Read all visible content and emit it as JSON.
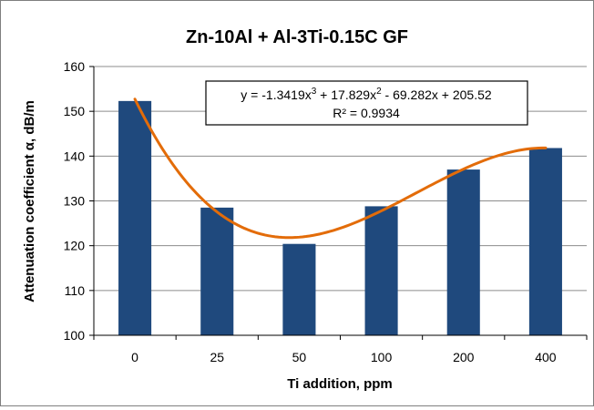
{
  "chart_data": {
    "type": "bar",
    "title": "Zn-10Al + Al-3Ti-0.15C GF",
    "xlabel": "Ti addition, ppm",
    "ylabel": "Attenuation coefficient  α, dB/m",
    "categories": [
      "0",
      "25",
      "50",
      "100",
      "200",
      "400"
    ],
    "series": [
      {
        "name": "",
        "values": [
          152.3,
          128.5,
          120.4,
          128.8,
          137.0,
          141.8
        ],
        "color": "#1f497d"
      }
    ],
    "trendline": {
      "type": "polynomial",
      "order": 3,
      "coefficients": [
        -1.3419,
        17.829,
        -69.282,
        205.52
      ],
      "equation_prefix": "y = -1.3419x",
      "equation_sup1": "3",
      "equation_mid": " + 17.829x",
      "equation_sup2": "2",
      "equation_suffix": " - 69.282x + 205.52",
      "r_squared_text": "R² = 0.9934",
      "color": "#e36c09"
    },
    "ylim": [
      100,
      160
    ],
    "yticks": [
      100,
      110,
      120,
      130,
      140,
      150,
      160
    ],
    "grid": true,
    "legend": "none"
  }
}
